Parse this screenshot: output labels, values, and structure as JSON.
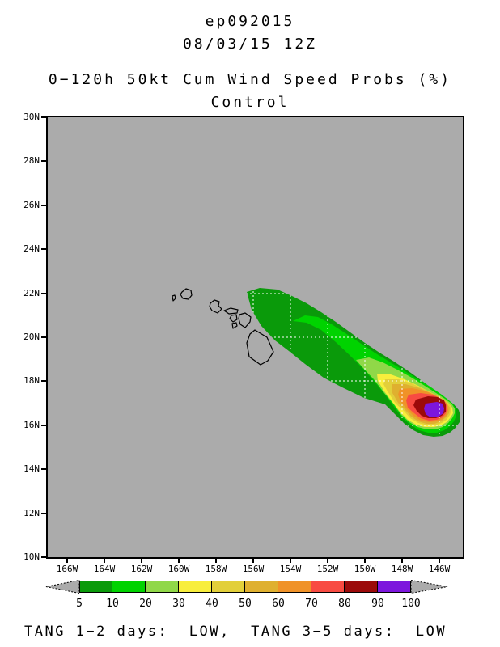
{
  "title": {
    "storm_id": "ep092015",
    "datetime": "08/03/15 12Z",
    "product": "0−120h 50kt Cum Wind Speed Probs (%)",
    "model": "Control"
  },
  "map": {
    "background_color": "#ababab",
    "coastline_color": "#000000",
    "grid_color": "#ffffff",
    "lat_labels": [
      "30N",
      "28N",
      "26N",
      "24N",
      "22N",
      "20N",
      "18N",
      "16N",
      "14N",
      "12N",
      "10N"
    ],
    "lon_labels": [
      "166W",
      "164W",
      "162W",
      "160W",
      "158W",
      "156W",
      "154W",
      "152W",
      "150W",
      "148W",
      "146W"
    ]
  },
  "colorbar": {
    "labels": [
      "5",
      "10",
      "20",
      "30",
      "40",
      "50",
      "60",
      "70",
      "80",
      "90",
      "100"
    ],
    "colors": [
      "#0a9a0a",
      "#00d300",
      "#90d848",
      "#f8ee3c",
      "#e2cf3a",
      "#dfb02f",
      "#f09228",
      "#f84b42",
      "#9c0a0a",
      "#7d16dd"
    ],
    "arrow_color": "#ababab"
  },
  "footer": {
    "text": "TANG 1−2 days:  LOW,  TANG 3−5 days:  LOW"
  },
  "chart_data": {
    "type": "heatmap",
    "title": "0−120h 50kt Cum Wind Speed Probs (%)",
    "subtitle": "Control",
    "storm": "ep092015",
    "valid_time": "08/03/15 12Z",
    "probability_levels_percent": [
      5,
      10,
      20,
      30,
      40,
      50,
      60,
      70,
      80,
      90,
      100
    ],
    "level_colors": [
      "#0a9a0a",
      "#00d300",
      "#90d848",
      "#f8ee3c",
      "#e2cf3a",
      "#dfb02f",
      "#f09228",
      "#f84b42",
      "#9c0a0a",
      "#7d16dd"
    ],
    "lon_range_deg_west": [
      167,
      144.7
    ],
    "lat_range_deg_north": [
      10,
      30
    ],
    "grid_spacing_deg": 2,
    "swath_description": "Elongated probability swath oriented NW-SE, from ~156.5W/22N just east of the Hawaiian Islands to ~145.5W/16.3N; maximum probabilities >90% (purple core) near 146.5W/16.8N",
    "tang_1_2_days": "LOW",
    "tang_3_5_days": "LOW"
  }
}
